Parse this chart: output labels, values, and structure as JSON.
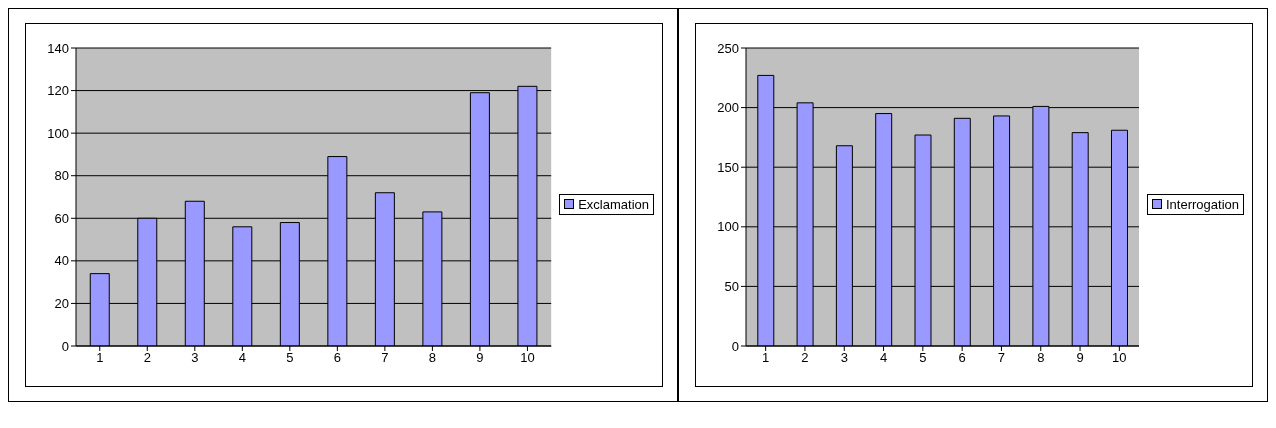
{
  "chart_data": [
    {
      "type": "bar",
      "categories": [
        "1",
        "2",
        "3",
        "4",
        "5",
        "6",
        "7",
        "8",
        "9",
        "10"
      ],
      "series": [
        {
          "name": "Exclamation",
          "color": "#9999ff",
          "values": [
            34,
            60,
            68,
            56,
            58,
            89,
            72,
            63,
            119,
            122
          ]
        }
      ],
      "ylim": [
        0,
        140
      ],
      "yticks": [
        0,
        20,
        40,
        60,
        80,
        100,
        120,
        140
      ],
      "grid": "y",
      "legend": "right"
    },
    {
      "type": "bar",
      "categories": [
        "1",
        "2",
        "3",
        "4",
        "5",
        "6",
        "7",
        "8",
        "9",
        "10"
      ],
      "series": [
        {
          "name": "Interrogation",
          "color": "#9999ff",
          "values": [
            227,
            204,
            168,
            195,
            177,
            191,
            193,
            201,
            179,
            181
          ]
        }
      ],
      "ylim": [
        0,
        250
      ],
      "yticks": [
        0,
        50,
        100,
        150,
        200,
        250
      ],
      "grid": "y",
      "legend": "right"
    }
  ]
}
